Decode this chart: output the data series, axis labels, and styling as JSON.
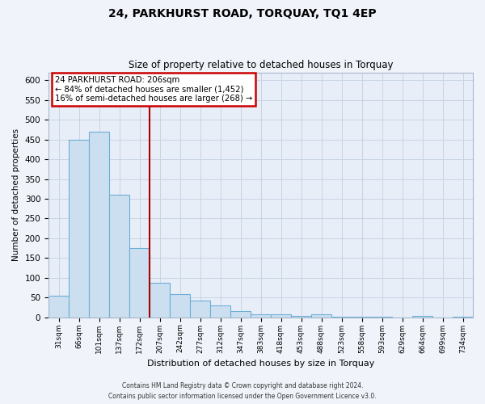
{
  "title": "24, PARKHURST ROAD, TORQUAY, TQ1 4EP",
  "subtitle": "Size of property relative to detached houses in Torquay",
  "xlabel": "Distribution of detached houses by size in Torquay",
  "ylabel": "Number of detached properties",
  "bar_labels": [
    "31sqm",
    "66sqm",
    "101sqm",
    "137sqm",
    "172sqm",
    "207sqm",
    "242sqm",
    "277sqm",
    "312sqm",
    "347sqm",
    "383sqm",
    "418sqm",
    "453sqm",
    "488sqm",
    "523sqm",
    "558sqm",
    "593sqm",
    "629sqm",
    "664sqm",
    "699sqm",
    "734sqm"
  ],
  "bar_heights": [
    55,
    450,
    470,
    310,
    175,
    88,
    58,
    42,
    30,
    15,
    7,
    7,
    4,
    7,
    1,
    1,
    1,
    0,
    3,
    0,
    2
  ],
  "bar_color": "#ccdff0",
  "bar_edge_color": "#6aafd6",
  "ylim": [
    0,
    620
  ],
  "yticks": [
    0,
    50,
    100,
    150,
    200,
    250,
    300,
    350,
    400,
    450,
    500,
    550,
    600
  ],
  "property_line_label": "24 PARKHURST ROAD: 206sqm",
  "annotation_line1": "← 84% of detached houses are smaller (1,452)",
  "annotation_line2": "16% of semi-detached houses are larger (268) →",
  "annotation_box_color": "#ffffff",
  "annotation_box_edge": "#cc0000",
  "red_line_color": "#aa0000",
  "grid_color": "#c8d4e4",
  "background_color": "#e8eef8",
  "fig_background": "#f0f4fa",
  "footer1": "Contains HM Land Registry data © Crown copyright and database right 2024.",
  "footer2": "Contains public sector information licensed under the Open Government Licence v3.0."
}
